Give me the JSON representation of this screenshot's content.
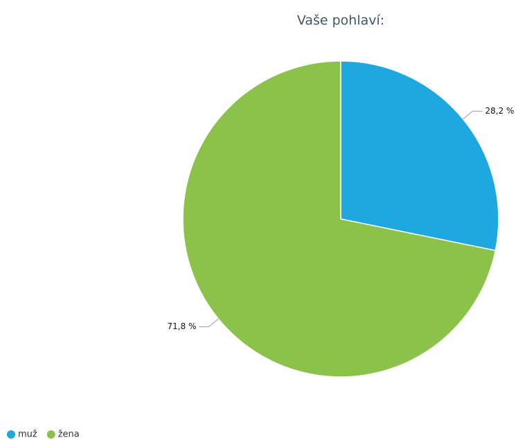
{
  "chart_data": {
    "type": "pie",
    "title": "Vaše pohlaví:",
    "categories": [
      "muž",
      "žena"
    ],
    "values": [
      28.2,
      71.8
    ],
    "value_labels": [
      "28,2 %",
      "71,8 %"
    ],
    "colors": [
      "#1fa8e0",
      "#8bc34a"
    ],
    "legend": "bottom-left"
  }
}
